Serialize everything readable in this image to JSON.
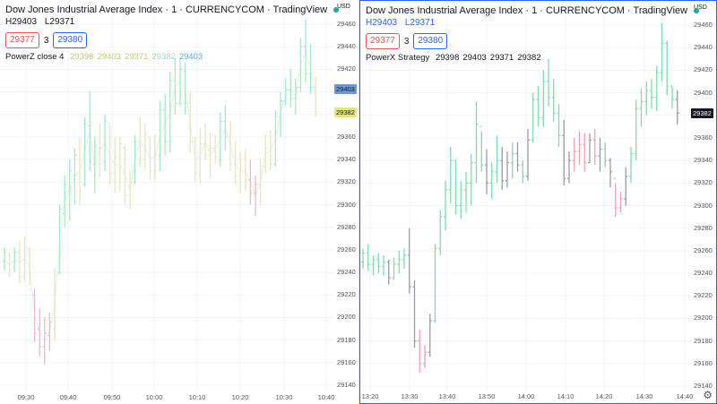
{
  "left_pane": {
    "legend": {
      "title": "Dow Jones Industrial Average Index · 1 · CURRENCYCOM · TradingView",
      "dot_color": "#26a69a",
      "high_label": "H",
      "high": "29403",
      "low_label": "L",
      "low": "29371",
      "sell": "29377",
      "spread": "3",
      "buy": "29380",
      "indicator": "PowerZ close 4",
      "indicator_values": [
        "29398",
        "29403",
        "29371",
        "29382",
        "29403"
      ]
    },
    "yaxis": {
      "currency": "USD",
      "ticks": [
        "29460",
        "29440",
        "29420",
        "29400",
        "29380",
        "29360",
        "29340",
        "29320",
        "29300",
        "29280",
        "29260",
        "29240",
        "29220",
        "29200",
        "29180",
        "29160",
        "29140"
      ],
      "price_tags": [
        {
          "value": "29403",
          "color": "#6a9ad5"
        },
        {
          "value": "29382",
          "color": "#e6e681"
        }
      ]
    },
    "xaxis": [
      "09:30",
      "09:40",
      "09:50",
      "10:00",
      "10:10",
      "10:20",
      "10:30",
      "10:40"
    ]
  },
  "right_pane": {
    "legend": {
      "title": "Dow Jones Industrial Average Index · 1 · CURRENCYCOM · TradingView",
      "dot_color": "#26a69a",
      "high_label": "H",
      "high": "29403",
      "low_label": "L",
      "low": "29371",
      "sell": "29377",
      "spread": "3",
      "buy": "29380",
      "indicator": "PowerX Strategy",
      "indicator_values": [
        "29398",
        "29403",
        "29371",
        "29382"
      ]
    },
    "yaxis": {
      "currency": "USD",
      "ticks": [
        "29460",
        "29440",
        "29420",
        "29400",
        "29380",
        "29360",
        "29340",
        "29320",
        "29300",
        "29280",
        "29260",
        "29240",
        "29220",
        "29200",
        "29180",
        "29160",
        "29140"
      ],
      "price_tags": [
        {
          "value": "29382",
          "color": "#131722"
        }
      ]
    },
    "xaxis": [
      "13:20",
      "13:30",
      "13:40",
      "13:50",
      "14:00",
      "14:10",
      "14:20",
      "14:30",
      "14:40"
    ],
    "settings_icon": "gear-icon"
  },
  "colors": {
    "up_left": "#a6e9c6",
    "down_left": "#eab9c3",
    "neutral_left": "#e6e6c0",
    "up_right": "#7fdcae",
    "down_right": "#f0a1ad",
    "neutral_right": "#9a9aa6",
    "grid": "#f0f3fa"
  }
}
